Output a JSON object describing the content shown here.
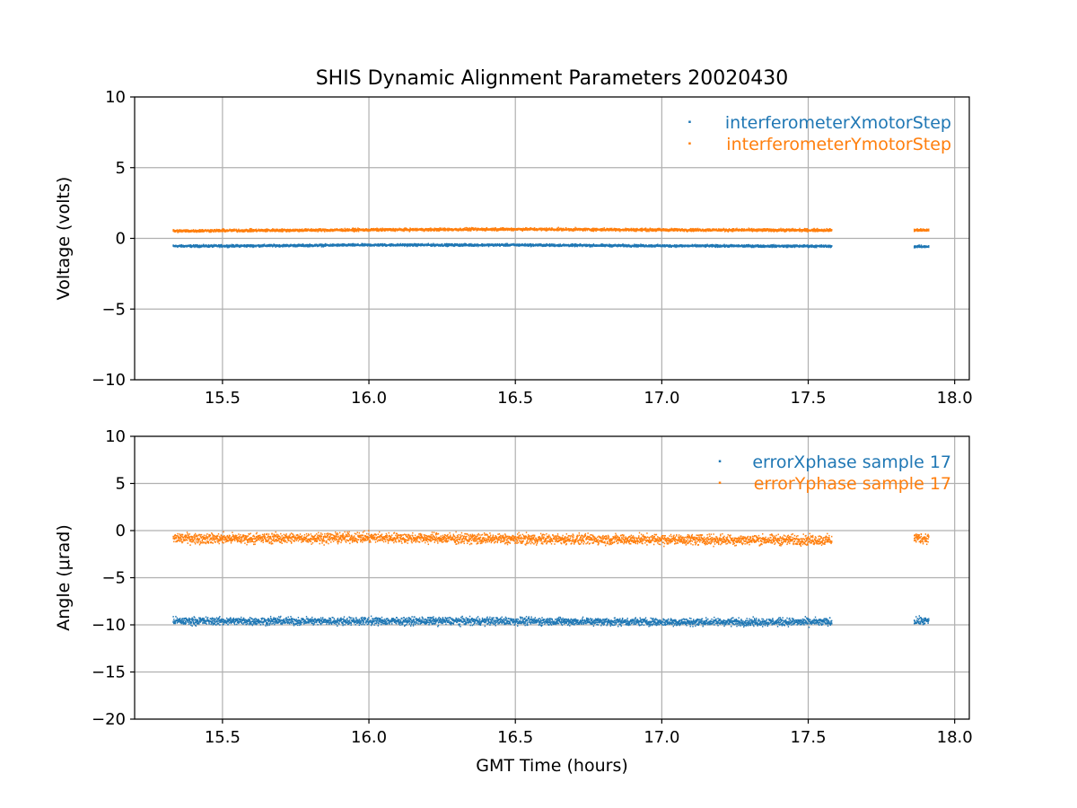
{
  "figure": {
    "title": "SHIS Dynamic Alignment Parameters 20020430"
  },
  "chart_data": [
    {
      "type": "scatter",
      "title": "SHIS Dynamic Alignment Parameters 20020430",
      "xlabel": "",
      "ylabel": "Voltage (volts)",
      "xlim": [
        15.2,
        18.05
      ],
      "ylim": [
        -10,
        10
      ],
      "xticks": [
        15.5,
        16.0,
        16.5,
        17.0,
        17.5,
        18.0
      ],
      "xtick_labels": [
        "15.5",
        "16.0",
        "16.5",
        "17.0",
        "17.5",
        "18.0"
      ],
      "yticks": [
        -10,
        -5,
        0,
        5,
        10
      ],
      "ytick_labels": [
        "−10",
        "−5",
        "0",
        "5",
        "10"
      ],
      "grid": true,
      "legend_position": "top-right",
      "series": [
        {
          "name": "interferometerXmotorStep",
          "color": "#1f77b4",
          "marker": "point",
          "spread": 0.12,
          "segments": [
            {
              "x": [
                15.33,
                15.5,
                16.0,
                16.5,
                17.0,
                17.5,
                17.58
              ],
              "y": [
                -0.55,
                -0.54,
                -0.47,
                -0.47,
                -0.53,
                -0.55,
                -0.56
              ]
            },
            {
              "x": [
                17.86,
                17.91
              ],
              "y": [
                -0.58,
                -0.58
              ]
            }
          ]
        },
        {
          "name": "interferometerYmotorStep",
          "color": "#ff7f0e",
          "marker": "point",
          "spread": 0.14,
          "segments": [
            {
              "x": [
                15.33,
                15.5,
                16.0,
                16.5,
                17.0,
                17.5,
                17.58
              ],
              "y": [
                0.52,
                0.55,
                0.6,
                0.65,
                0.6,
                0.58,
                0.58
              ]
            },
            {
              "x": [
                17.86,
                17.91
              ],
              "y": [
                0.58,
                0.58
              ]
            }
          ]
        }
      ]
    },
    {
      "type": "scatter",
      "title": "",
      "xlabel": "GMT Time (hours)",
      "ylabel": "Angle (μrad)",
      "xlim": [
        15.2,
        18.05
      ],
      "ylim": [
        -20,
        10
      ],
      "xticks": [
        15.5,
        16.0,
        16.5,
        17.0,
        17.5,
        18.0
      ],
      "xtick_labels": [
        "15.5",
        "16.0",
        "16.5",
        "17.0",
        "17.5",
        "18.0"
      ],
      "yticks": [
        -20,
        -15,
        -10,
        -5,
        0,
        5,
        10
      ],
      "ytick_labels": [
        "−20",
        "−15",
        "−10",
        "−5",
        "0",
        "5",
        "10"
      ],
      "grid": true,
      "legend_position": "top-right",
      "series": [
        {
          "name": "errorXphase sample 17",
          "color": "#1f77b4",
          "marker": "point",
          "spread": 0.6,
          "segments": [
            {
              "x": [
                15.33,
                15.5,
                16.0,
                16.5,
                17.0,
                17.5,
                17.58
              ],
              "y": [
                -9.6,
                -9.6,
                -9.6,
                -9.6,
                -9.7,
                -9.7,
                -9.7
              ]
            },
            {
              "x": [
                17.86,
                17.91
              ],
              "y": [
                -9.6,
                -9.6
              ]
            }
          ]
        },
        {
          "name": "errorYphase sample 17",
          "color": "#ff7f0e",
          "marker": "point",
          "spread": 0.8,
          "segments": [
            {
              "x": [
                15.33,
                15.5,
                16.0,
                16.5,
                17.0,
                17.5,
                17.58
              ],
              "y": [
                -0.8,
                -0.85,
                -0.75,
                -0.9,
                -0.95,
                -1.0,
                -1.0
              ]
            },
            {
              "x": [
                17.86,
                17.91
              ],
              "y": [
                -0.8,
                -0.8
              ]
            }
          ]
        }
      ]
    }
  ]
}
